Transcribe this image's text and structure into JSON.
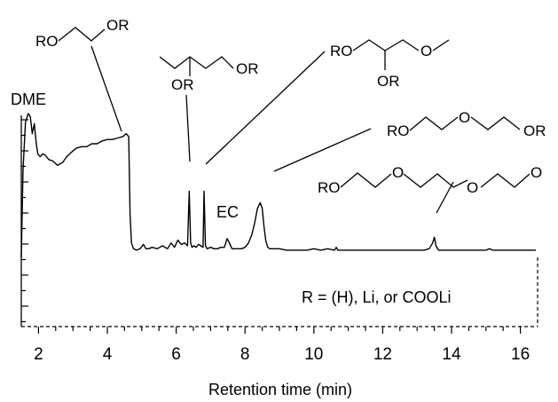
{
  "chart_data": {
    "type": "line",
    "xlabel": "Retention time (min)",
    "ylabel": "",
    "xlim": [
      1.5,
      16.5
    ],
    "ylim": [
      0,
      1
    ],
    "x_ticks": [
      "2",
      "4",
      "6",
      "8",
      "10",
      "12",
      "14",
      "16"
    ],
    "grid": false,
    "legend": "none",
    "series": [
      {
        "color": "#000000",
        "x": [
          1.5,
          1.55,
          1.62,
          1.7,
          1.76,
          1.82,
          1.88,
          1.93,
          1.98,
          2.05,
          2.12,
          2.2,
          2.3,
          2.42,
          2.55,
          2.7,
          2.82,
          2.95,
          3.1,
          3.25,
          3.4,
          3.55,
          3.7,
          3.85,
          4.0,
          4.15,
          4.3,
          4.45,
          4.55,
          4.62,
          4.66,
          4.7,
          4.76,
          4.85,
          4.95,
          5.05,
          5.12,
          5.2,
          5.3,
          5.45,
          5.6,
          5.75,
          5.85,
          5.95,
          6.05,
          6.15,
          6.25,
          6.33,
          6.38,
          6.42,
          6.46,
          6.52,
          6.58,
          6.65,
          6.72,
          6.78,
          6.81,
          6.85,
          6.9,
          7.0,
          7.1,
          7.2,
          7.3,
          7.4,
          7.48,
          7.55,
          7.62,
          7.7,
          7.8,
          7.9,
          8.0,
          8.1,
          8.2,
          8.28,
          8.36,
          8.44,
          8.5,
          8.55,
          8.6,
          8.66,
          8.72,
          8.8,
          8.9,
          9.0,
          9.2,
          9.4,
          9.6,
          9.8,
          10.0,
          10.2,
          10.4,
          10.6,
          10.65,
          10.7,
          10.9,
          11.2,
          11.5,
          11.8,
          12.0,
          12.2,
          12.5,
          12.8,
          13.0,
          13.2,
          13.35,
          13.45,
          13.5,
          13.55,
          13.62,
          13.75,
          13.9,
          14.1,
          14.4,
          14.7,
          15.0,
          15.1,
          15.2,
          15.5,
          15.8,
          16.1,
          16.45
        ],
        "y": [
          0.0,
          0.6,
          0.94,
          1.0,
          0.98,
          0.86,
          0.93,
          0.8,
          0.72,
          0.7,
          0.72,
          0.71,
          0.68,
          0.67,
          0.64,
          0.66,
          0.7,
          0.73,
          0.76,
          0.77,
          0.77,
          0.79,
          0.79,
          0.81,
          0.82,
          0.82,
          0.83,
          0.84,
          0.86,
          0.84,
          0.3,
          0.1,
          0.06,
          0.05,
          0.06,
          0.09,
          0.06,
          0.06,
          0.07,
          0.06,
          0.08,
          0.06,
          0.1,
          0.07,
          0.12,
          0.09,
          0.1,
          0.08,
          0.46,
          0.1,
          0.07,
          0.08,
          0.07,
          0.09,
          0.08,
          0.07,
          0.46,
          0.08,
          0.06,
          0.07,
          0.06,
          0.06,
          0.07,
          0.07,
          0.13,
          0.1,
          0.06,
          0.06,
          0.06,
          0.06,
          0.07,
          0.1,
          0.16,
          0.24,
          0.34,
          0.38,
          0.34,
          0.22,
          0.12,
          0.07,
          0.06,
          0.06,
          0.06,
          0.06,
          0.05,
          0.05,
          0.05,
          0.05,
          0.06,
          0.05,
          0.06,
          0.05,
          0.07,
          0.05,
          0.05,
          0.05,
          0.05,
          0.05,
          0.05,
          0.05,
          0.05,
          0.05,
          0.05,
          0.05,
          0.06,
          0.1,
          0.14,
          0.08,
          0.05,
          0.05,
          0.05,
          0.05,
          0.05,
          0.05,
          0.05,
          0.06,
          0.05,
          0.05,
          0.05,
          0.05,
          0.05
        ]
      }
    ],
    "annotations": {
      "dme": "DME",
      "ec": "EC",
      "r_def": "R = (H), Li, or COOLi"
    },
    "structure_labels": {
      "s1_left": "RO",
      "s1_right": "OR",
      "s2_sub": "OR",
      "s2_end": "OR",
      "s3_left": "RO",
      "s3_sub": "OR",
      "s3_mid": "O",
      "s4_left": "RO",
      "s4_mid": "O",
      "s4_right": "OR",
      "s5_left": "RO",
      "s5_o1": "O",
      "s5_o2": "O",
      "s5_o3": "O"
    }
  }
}
